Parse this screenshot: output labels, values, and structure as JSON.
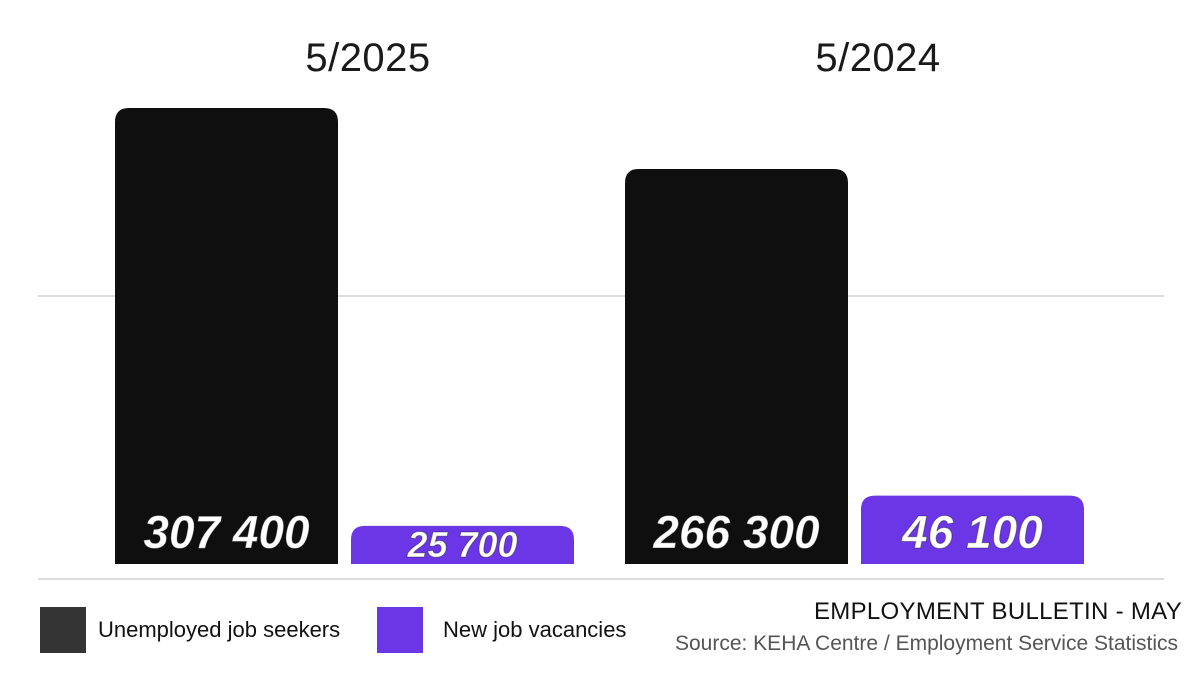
{
  "chart_data": {
    "type": "bar",
    "categories": [
      "5/2025",
      "5/2024"
    ],
    "series": [
      {
        "name": "Unemployed job seekers",
        "values": [
          307400,
          266300
        ],
        "labels": [
          "307 400",
          "266 300"
        ],
        "color": "#0f0f0f"
      },
      {
        "name": "New job vacancies",
        "values": [
          25700,
          46100
        ],
        "labels": [
          "25 700",
          "46 100"
        ],
        "color": "#6a36e6"
      }
    ]
  },
  "legend": {
    "items": [
      {
        "label": "Unemployed job seekers",
        "color": "#343434"
      },
      {
        "label": "New job vacancies",
        "color": "#6a36e6"
      }
    ]
  },
  "footer": {
    "title": "EMPLOYMENT BULLETIN - MAY",
    "source": "Source: KEHA Centre / Employment Service Statistics"
  }
}
